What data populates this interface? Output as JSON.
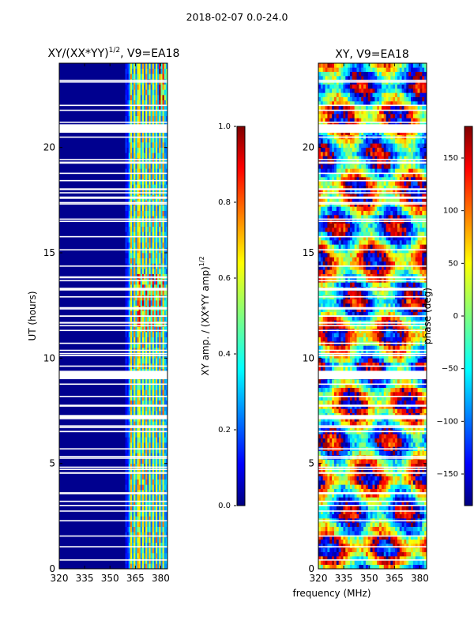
{
  "figure": {
    "suptitle": "2018-02-07 0.0-24.0",
    "xlabel": "frequency (MHz)"
  },
  "chart_data": [
    {
      "type": "heatmap",
      "title_main": "XY/(XX*YY)",
      "title_sup": "1/2",
      "title_tail": ", V9=EA18",
      "xlabel": "",
      "ylabel": "UT (hours)",
      "xlim": [
        320,
        384
      ],
      "ylim": [
        0,
        24
      ],
      "xticks": [
        320,
        335,
        350,
        365,
        380
      ],
      "yticks": [
        0,
        5,
        10,
        15,
        20
      ],
      "colorbar": {
        "label_main": "XY amp. / (XX*YY amp)",
        "label_sup": "1/2",
        "range": [
          0.0,
          1.0
        ],
        "ticks": [
          "0.0",
          "0.2",
          "0.4",
          "0.6",
          "0.8",
          "1.0"
        ]
      },
      "flagged_hours": [
        [
          20.7,
          21.1
        ],
        [
          9.0,
          9.4
        ],
        [
          7.1,
          7.3
        ]
      ],
      "rfi_channels_mhz": [
        362,
        364,
        366,
        367,
        369,
        371,
        373,
        375,
        377,
        379,
        381
      ]
    },
    {
      "type": "heatmap",
      "title": "XY, V9=EA18",
      "xlabel": "frequency (MHz)",
      "ylabel": "",
      "xlim": [
        320,
        384
      ],
      "ylim": [
        0,
        24
      ],
      "xticks": [
        320,
        335,
        350,
        365,
        380
      ],
      "yticks": [
        0,
        5,
        10,
        15,
        20
      ],
      "colorbar": {
        "label": "phase (deg)",
        "range": [
          -180,
          180
        ],
        "ticks": [
          "150",
          "100",
          "50",
          "0",
          "−50",
          "−100",
          "−150"
        ]
      },
      "flagged_hours": [
        [
          20.7,
          21.1
        ],
        [
          9.0,
          9.4
        ],
        [
          7.1,
          7.3
        ]
      ]
    }
  ],
  "colors": {
    "jet": [
      "#00007f",
      "#0000ff",
      "#007fff",
      "#00ffff",
      "#7fff7f",
      "#ffff00",
      "#ff7f00",
      "#ff0000",
      "#7f0000"
    ]
  }
}
